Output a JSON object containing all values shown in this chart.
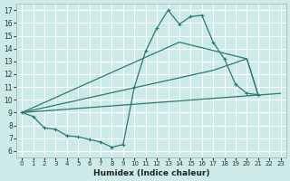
{
  "xlabel": "Humidex (Indice chaleur)",
  "xlim": [
    -0.5,
    23.5
  ],
  "ylim": [
    5.5,
    17.5
  ],
  "xticks": [
    0,
    1,
    2,
    3,
    4,
    5,
    6,
    7,
    8,
    9,
    10,
    11,
    12,
    13,
    14,
    15,
    16,
    17,
    18,
    19,
    20,
    21,
    22,
    23
  ],
  "yticks": [
    6,
    7,
    8,
    9,
    10,
    11,
    12,
    13,
    14,
    15,
    16,
    17
  ],
  "bg_color": "#cceae8",
  "grid_color": "#ffffff",
  "line_color": "#2a7a70",
  "lines": [
    {
      "x": [
        0,
        1,
        2,
        3,
        4,
        5,
        6,
        7,
        8,
        9,
        10,
        11,
        12,
        13,
        14,
        15,
        16,
        17,
        18,
        19,
        20,
        21
      ],
      "y": [
        9.0,
        8.7,
        7.8,
        7.7,
        7.2,
        7.1,
        6.9,
        6.7,
        6.3,
        6.5,
        11.0,
        13.8,
        15.6,
        17.0,
        15.9,
        16.5,
        16.6,
        14.5,
        13.2,
        11.2,
        10.5,
        10.4
      ],
      "marker": true
    },
    {
      "x": [
        0,
        23
      ],
      "y": [
        9.0,
        10.5
      ],
      "marker": false
    },
    {
      "x": [
        0,
        14,
        20,
        21
      ],
      "y": [
        9.0,
        14.5,
        13.2,
        10.4
      ],
      "marker": false
    },
    {
      "x": [
        0,
        17,
        20,
        21
      ],
      "y": [
        9.0,
        12.3,
        13.2,
        10.4
      ],
      "marker": false
    }
  ]
}
